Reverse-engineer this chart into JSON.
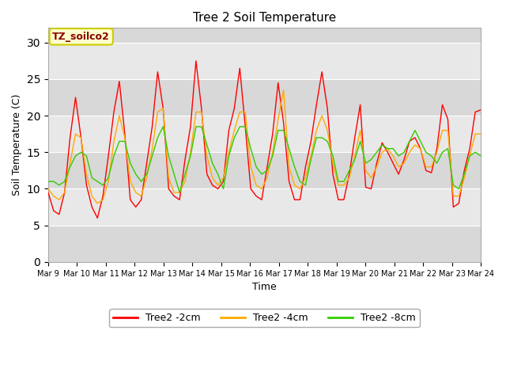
{
  "title": "Tree 2 Soil Temperature",
  "xlabel": "Time",
  "ylabel": "Soil Temperature (C)",
  "annotation": "TZ_soilco2",
  "ylim": [
    0,
    32
  ],
  "yticks": [
    0,
    5,
    10,
    15,
    20,
    25,
    30
  ],
  "x_labels": [
    "Mar 9",
    "Mar 10",
    "Mar 11",
    "Mar 12",
    "Mar 13",
    "Mar 14",
    "Mar 15",
    "Mar 16",
    "Mar 17",
    "Mar 18",
    "Mar 19",
    "Mar 20",
    "Mar 21",
    "Mar 22",
    "Mar 23",
    "Mar 24"
  ],
  "bg_color": "#e8e8e8",
  "band_light": "#ebebeb",
  "band_dark": "#d8d8d8",
  "line_colors": [
    "#ff0000",
    "#ffaa00",
    "#33cc00"
  ],
  "legend_labels": [
    "Tree2 -2cm",
    "Tree2 -4cm",
    "Tree2 -8cm"
  ],
  "series": {
    "2cm": [
      9.5,
      7.0,
      6.5,
      9.5,
      17.0,
      22.5,
      17.0,
      10.5,
      7.5,
      6.0,
      9.0,
      14.5,
      20.5,
      24.7,
      17.5,
      8.5,
      7.5,
      8.5,
      13.5,
      18.5,
      26.0,
      21.0,
      10.0,
      9.0,
      8.5,
      14.0,
      18.5,
      27.5,
      21.0,
      12.0,
      10.5,
      10.0,
      11.0,
      18.0,
      21.0,
      26.5,
      18.5,
      10.0,
      9.0,
      8.5,
      13.0,
      17.5,
      24.5,
      19.0,
      11.0,
      8.5,
      8.5,
      13.0,
      16.5,
      21.5,
      26.0,
      21.0,
      12.0,
      8.5,
      8.5,
      12.0,
      17.0,
      21.5,
      10.2,
      10.0,
      13.5,
      16.3,
      15.0,
      13.5,
      12.0,
      14.0,
      16.5,
      17.0,
      15.5,
      12.5,
      12.2,
      15.5,
      21.5,
      19.5,
      7.5,
      8.0,
      12.5,
      15.5,
      20.5,
      20.8
    ],
    "4cm": [
      10.0,
      9.0,
      8.5,
      9.5,
      13.5,
      17.5,
      17.0,
      12.0,
      9.0,
      8.0,
      8.5,
      11.0,
      16.5,
      20.0,
      17.0,
      11.0,
      9.5,
      9.0,
      11.5,
      15.5,
      20.5,
      21.0,
      11.5,
      9.5,
      9.5,
      11.0,
      15.0,
      20.5,
      20.5,
      14.5,
      11.5,
      10.5,
      11.5,
      15.0,
      18.0,
      20.5,
      20.5,
      13.0,
      10.5,
      10.0,
      11.5,
      15.0,
      19.5,
      23.5,
      13.0,
      10.5,
      10.0,
      11.5,
      14.5,
      18.0,
      20.0,
      18.0,
      13.5,
      10.5,
      10.5,
      11.5,
      14.5,
      18.0,
      12.5,
      11.5,
      13.0,
      15.0,
      15.5,
      14.5,
      13.0,
      13.5,
      15.0,
      16.0,
      15.5,
      13.0,
      13.0,
      15.0,
      18.0,
      18.0,
      9.0,
      9.0,
      11.5,
      14.5,
      17.5,
      17.5
    ],
    "8cm": [
      11.0,
      11.0,
      10.5,
      11.0,
      13.0,
      14.5,
      15.0,
      14.5,
      11.5,
      11.0,
      10.5,
      11.5,
      14.5,
      16.5,
      16.5,
      13.5,
      12.0,
      11.0,
      12.0,
      14.5,
      17.0,
      18.5,
      14.5,
      12.0,
      9.5,
      12.0,
      14.5,
      18.5,
      18.5,
      16.0,
      13.5,
      12.0,
      10.0,
      14.5,
      17.0,
      18.5,
      18.5,
      15.5,
      13.0,
      12.0,
      12.5,
      14.5,
      18.0,
      18.0,
      15.5,
      13.0,
      11.0,
      10.5,
      14.0,
      17.0,
      17.0,
      16.5,
      14.5,
      11.0,
      11.0,
      12.5,
      14.0,
      16.5,
      13.5,
      14.0,
      15.0,
      16.0,
      15.5,
      15.5,
      14.5,
      15.0,
      16.5,
      18.0,
      16.5,
      15.0,
      14.5,
      13.5,
      15.0,
      15.5,
      10.5,
      10.0,
      12.0,
      14.5,
      15.0,
      14.5
    ]
  }
}
